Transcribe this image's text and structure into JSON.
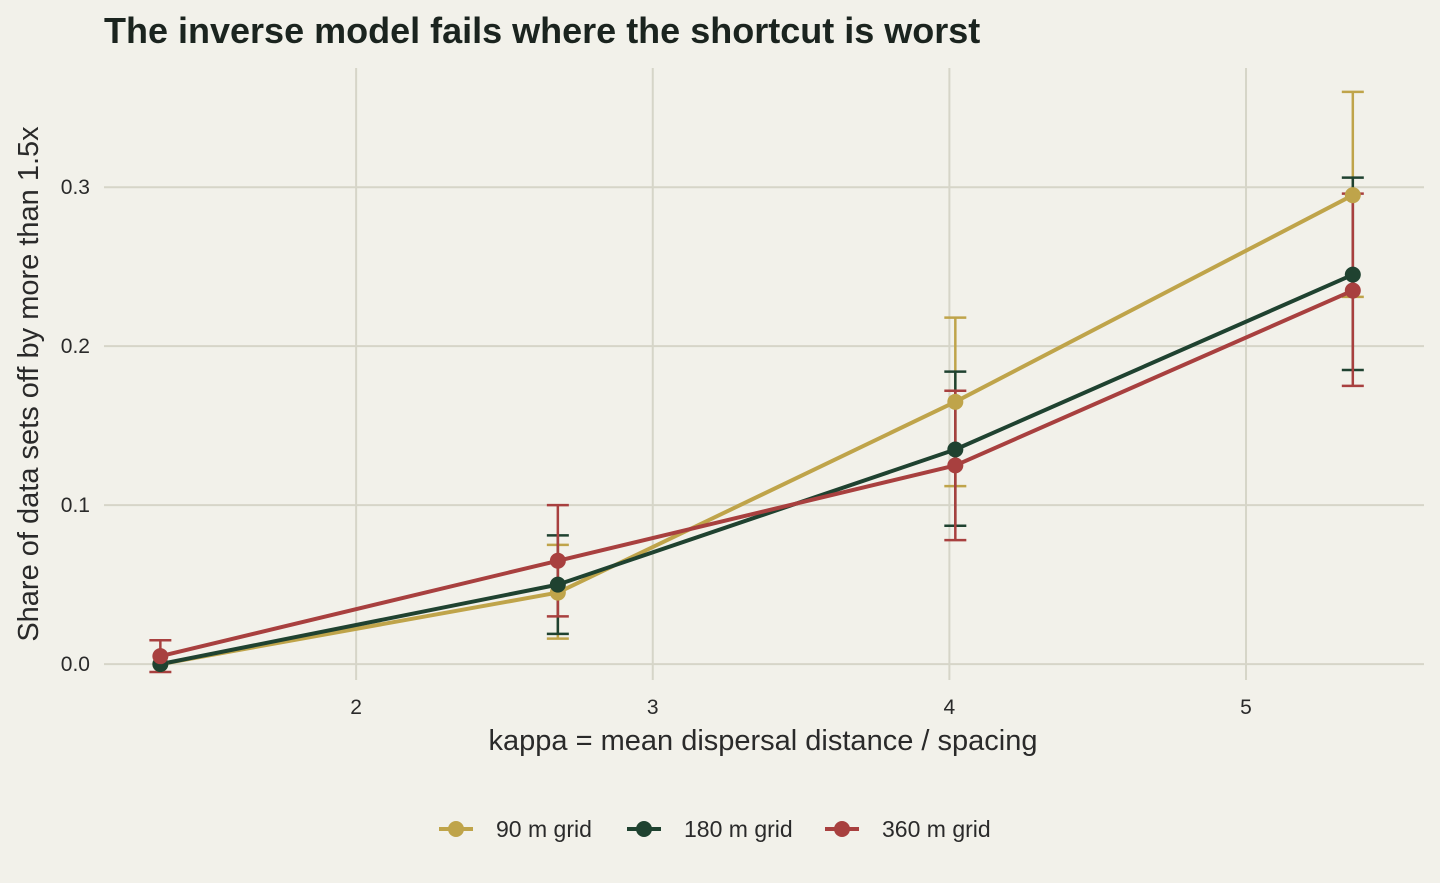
{
  "chart_data": {
    "type": "line",
    "title": "The inverse model fails where the shortcut is worst",
    "xlabel": "kappa = mean dispersal distance / spacing",
    "ylabel": "Share of data sets off by more than 1.5x",
    "xlim": [
      1.15,
      5.6
    ],
    "ylim": [
      -0.01,
      0.375
    ],
    "x_ticks": [
      2,
      3,
      4,
      5
    ],
    "y_ticks": [
      0.0,
      0.1,
      0.2,
      0.3
    ],
    "x_tick_labels": [
      "2",
      "3",
      "4",
      "5"
    ],
    "y_tick_labels": [
      "0.0",
      "0.1",
      "0.2",
      "0.3"
    ],
    "grid": true,
    "legend_position": "bottom",
    "series": [
      {
        "name": "90 m grid",
        "color": "#bfa44a",
        "x": [
          1.34,
          2.68,
          4.02,
          5.36
        ],
        "y": [
          0.0,
          0.045,
          0.165,
          0.295
        ],
        "err_low": [
          0.0,
          0.016,
          0.112,
          0.231
        ],
        "err_high": [
          0.0,
          0.075,
          0.218,
          0.36
        ]
      },
      {
        "name": "180 m grid",
        "color": "#1f4230",
        "x": [
          1.34,
          2.68,
          4.02,
          5.36
        ],
        "y": [
          0.0,
          0.05,
          0.135,
          0.245
        ],
        "err_low": [
          0.0,
          0.019,
          0.087,
          0.185
        ],
        "err_high": [
          0.0,
          0.081,
          0.184,
          0.306
        ]
      },
      {
        "name": "360 m grid",
        "color": "#a8403f",
        "x": [
          1.34,
          2.68,
          4.02,
          5.36
        ],
        "y": [
          0.005,
          0.065,
          0.125,
          0.235
        ],
        "err_low": [
          -0.005,
          0.03,
          0.078,
          0.175
        ],
        "err_high": [
          0.015,
          0.1,
          0.172,
          0.296
        ]
      }
    ]
  }
}
